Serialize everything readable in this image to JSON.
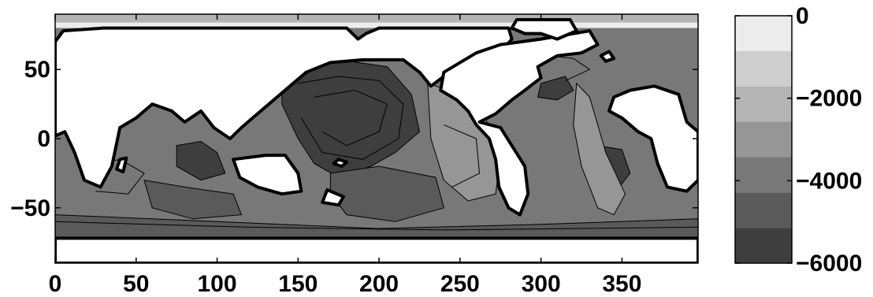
{
  "chart_data": {
    "type": "heatmap",
    "title": "",
    "xlabel": "",
    "ylabel": "",
    "xlim": [
      0,
      397
    ],
    "ylim": [
      -90,
      90
    ],
    "x_ticks": [
      0,
      50,
      100,
      150,
      200,
      250,
      300,
      350
    ],
    "y_ticks": [
      50,
      0,
      -50
    ],
    "x_tick_labels": [
      "0",
      "50",
      "100",
      "150",
      "200",
      "250",
      "300",
      "350"
    ],
    "y_tick_labels": [
      "50",
      "0",
      "−50"
    ],
    "grid": false,
    "colorbar": {
      "placement": "right",
      "range": [
        -6000,
        0
      ],
      "levels": [
        0,
        -1000,
        -2000,
        -3000,
        -4000,
        -5000,
        -6000
      ],
      "ticks": [
        0,
        -2000,
        -4000,
        -6000
      ],
      "tick_labels": [
        "0",
        "−2000",
        "−4000",
        "−6000"
      ],
      "colors": [
        "#ececec",
        "#cecece",
        "#b4b4b4",
        "#969696",
        "#787878",
        "#5a5a5a",
        "#3e3e3e"
      ]
    },
    "land_color": "#ffffff",
    "coastline_color": "#000000",
    "field": {
      "description_values_m": {
        "pacific_basin_min": -5500,
        "indian_basin_min": -5200,
        "atlantic_basin_min": -5500,
        "southern_ocean_min": -5000,
        "arctic_max": -500
      }
    }
  }
}
